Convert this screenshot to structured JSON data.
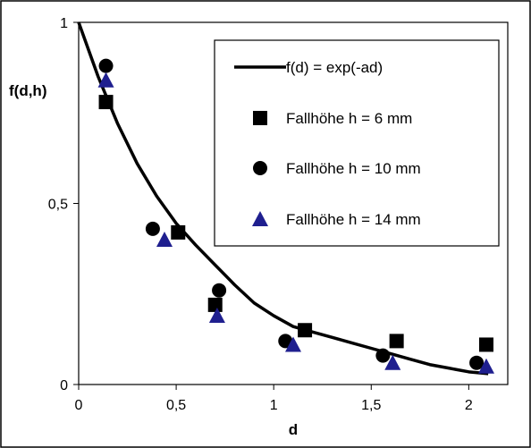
{
  "chart_data": {
    "type": "scatter",
    "title": "",
    "xlabel": "d",
    "ylabel": "f(d,h)",
    "xlim": [
      0,
      2.2
    ],
    "ylim": [
      0,
      1
    ],
    "x_ticks": [
      "0",
      "0,5",
      "1",
      "1,5",
      "2"
    ],
    "y_ticks": [
      "0",
      "0,5",
      "1"
    ],
    "grid": false,
    "legend_position": "top-right",
    "series": [
      {
        "name": "f(d) = exp(-ad)",
        "kind": "line",
        "marker": "none",
        "color": "#000000",
        "x": [
          0,
          0.1,
          0.2,
          0.3,
          0.4,
          0.5,
          0.6,
          0.7,
          0.8,
          0.9,
          1.0,
          1.1,
          1.2,
          1.3,
          1.4,
          1.5,
          1.6,
          1.7,
          1.8,
          1.9,
          2.0,
          2.1
        ],
        "y": [
          1.0,
          0.85,
          0.72,
          0.61,
          0.52,
          0.445,
          0.385,
          0.33,
          0.275,
          0.225,
          0.19,
          0.16,
          0.145,
          0.13,
          0.115,
          0.1,
          0.085,
          0.07,
          0.055,
          0.045,
          0.035,
          0.03
        ]
      },
      {
        "name": "Fallhöhe h = 6 mm",
        "kind": "points",
        "marker": "square",
        "color": "#000000",
        "x": [
          0.14,
          0.51,
          0.7,
          1.16,
          1.63,
          2.09
        ],
        "y": [
          0.78,
          0.42,
          0.22,
          0.15,
          0.12,
          0.11
        ]
      },
      {
        "name": "Fallhöhe h = 10 mm",
        "kind": "points",
        "marker": "circle",
        "color": "#000000",
        "x": [
          0.14,
          0.38,
          0.72,
          1.06,
          1.56,
          2.04
        ],
        "y": [
          0.88,
          0.43,
          0.26,
          0.12,
          0.08,
          0.06
        ]
      },
      {
        "name": "Fallhöhe h = 14 mm",
        "kind": "points",
        "marker": "triangle",
        "color": "#1f1f8f",
        "x": [
          0.14,
          0.44,
          0.71,
          1.1,
          1.61,
          2.09
        ],
        "y": [
          0.84,
          0.4,
          0.19,
          0.11,
          0.06,
          0.05
        ]
      }
    ]
  }
}
